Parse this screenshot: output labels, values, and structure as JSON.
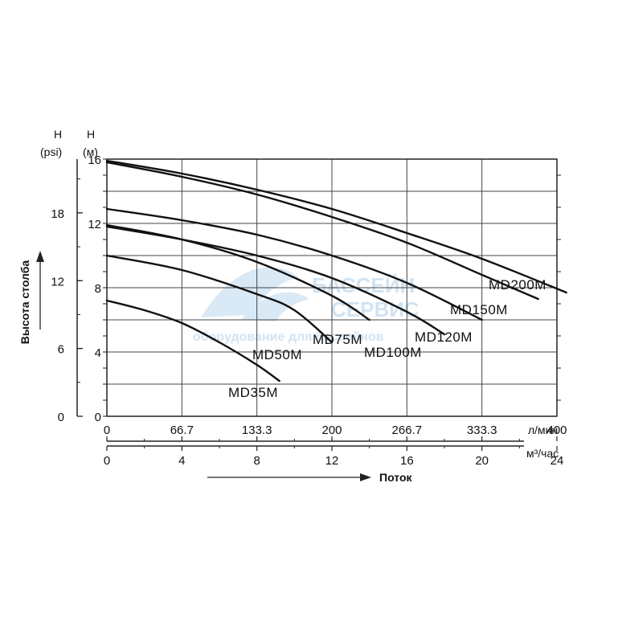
{
  "chart_data": {
    "type": "line",
    "title": "",
    "ylabel": "Высота столба",
    "xlabel": "Поток",
    "xlim": [
      0,
      24
    ],
    "ylim": [
      0,
      16
    ],
    "grid": true,
    "x_ticks_m3h": [
      "0",
      "4",
      "8",
      "12",
      "16",
      "20",
      "24"
    ],
    "x_ticks_lpm": [
      "0",
      "66.7",
      "133.3",
      "200",
      "266.7",
      "333.3",
      "400"
    ],
    "x_unit_lpm": "л/мин",
    "x_unit_m3h": "м³/час",
    "y_ticks_m": [
      "0",
      "4",
      "8",
      "12",
      "16"
    ],
    "y_ticks_psi": [
      "0",
      "6",
      "12",
      "18"
    ],
    "y_header_m_symbol": "H",
    "y_header_m_unit": "(м)",
    "y_header_psi_symbol": "H",
    "y_header_psi_unit": "(psi)",
    "series": [
      {
        "name": "MD35M",
        "x": [
          0,
          2,
          4,
          6,
          8,
          9.2
        ],
        "y": [
          7.2,
          6.6,
          5.8,
          4.6,
          3.2,
          2.2
        ]
      },
      {
        "name": "MD50M",
        "x": [
          0,
          4,
          8,
          10,
          12
        ],
        "y": [
          10.0,
          9.1,
          7.6,
          6.6,
          4.6
        ]
      },
      {
        "name": "MD75M",
        "x": [
          0,
          4,
          8,
          12,
          14
        ],
        "y": [
          11.9,
          11.0,
          9.6,
          7.5,
          6.0
        ]
      },
      {
        "name": "MD100M",
        "x": [
          0,
          4,
          8,
          12,
          16,
          18
        ],
        "y": [
          11.8,
          11.0,
          10.0,
          8.6,
          6.5,
          5.1
        ]
      },
      {
        "name": "MD120M",
        "x": [
          0,
          4,
          8,
          12,
          16,
          20
        ],
        "y": [
          12.9,
          12.2,
          11.3,
          10.0,
          8.3,
          6.0
        ]
      },
      {
        "name": "MD150M",
        "x": [
          0,
          4,
          8,
          12,
          16,
          20,
          23
        ],
        "y": [
          15.8,
          14.9,
          13.8,
          12.4,
          10.8,
          8.8,
          7.3
        ]
      },
      {
        "name": "MD200M",
        "x": [
          0,
          4,
          8,
          12,
          16,
          20,
          24.5
        ],
        "y": [
          15.9,
          15.1,
          14.1,
          12.9,
          11.4,
          9.8,
          7.7
        ]
      }
    ]
  },
  "watermark": {
    "line1": "БАССЕЙН",
    "line2": "СЕРВИС",
    "line3": "оборудование для бассейнов",
    "color": "#c9dff0"
  }
}
